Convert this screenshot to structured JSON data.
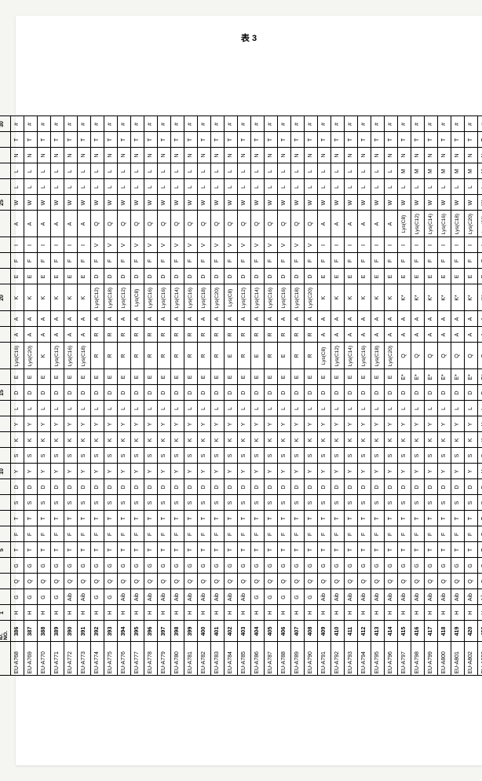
{
  "title": "表 3",
  "header_label_line1": "SEQ.",
  "header_label_line2": "ID.",
  "header_label_line3": "NO.",
  "pos_markers": {
    "1": "1",
    "5": "5",
    "10": "10",
    "15": "15",
    "20": "20",
    "25": "25",
    "30": "30"
  },
  "col_widths": [
    "c",
    "c",
    "c",
    "c",
    "c",
    "c",
    "c",
    "c",
    "c",
    "c",
    "c",
    "c",
    "c",
    "c",
    "c",
    "c",
    "cw",
    "c",
    "c",
    "cw",
    "c",
    "c",
    "c",
    "cw",
    "c",
    "c",
    "c",
    "c",
    "c",
    "c"
  ],
  "rows": [
    {
      "id": "EU-A768",
      "seq": "386",
      "cells": [
        "H",
        "G",
        "Q",
        "G",
        "T",
        "F",
        "T",
        "S",
        "D",
        "Y",
        "S",
        "K",
        "Y",
        "L",
        "D",
        "E",
        "Lys(C16)",
        "A",
        "A",
        "K",
        "E",
        "F",
        "I",
        "A",
        "W",
        "L",
        "L",
        "N",
        "T",
        "#"
      ]
    },
    {
      "id": "EU-A769",
      "seq": "387",
      "cells": [
        "H",
        "G",
        "Q",
        "G",
        "T",
        "F",
        "T",
        "S",
        "D",
        "Y",
        "S",
        "K",
        "Y",
        "L",
        "D",
        "E",
        "Lys(C20)",
        "A",
        "A",
        "K",
        "E",
        "F",
        "I",
        "A",
        "W",
        "L",
        "L",
        "N",
        "T",
        "#"
      ]
    },
    {
      "id": "EU-A770",
      "seq": "388",
      "cells": [
        "H",
        "G",
        "Q",
        "G",
        "T",
        "F",
        "T",
        "S",
        "D",
        "Y",
        "S",
        "K",
        "Y",
        "L",
        "D",
        "E",
        "K",
        "A",
        "A",
        "K",
        "E",
        "F",
        "I",
        "A",
        "W",
        "L",
        "L",
        "N",
        "T",
        "#"
      ]
    },
    {
      "id": "EU-A771",
      "seq": "389",
      "cells": [
        "H",
        "G",
        "Q",
        "G",
        "T",
        "F",
        "T",
        "S",
        "D",
        "Y",
        "S",
        "K",
        "Y",
        "L",
        "D",
        "E",
        "Lys(C12)",
        "A",
        "A",
        "K",
        "E",
        "F",
        "I",
        "A",
        "W",
        "L",
        "L",
        "N",
        "T",
        "#"
      ]
    },
    {
      "id": "EU-A772",
      "seq": "390",
      "cells": [
        "H",
        "Aib",
        "Q",
        "G",
        "T",
        "F",
        "T",
        "S",
        "D",
        "Y",
        "S",
        "K",
        "Y",
        "L",
        "D",
        "E",
        "Lys(C16)",
        "A",
        "A",
        "K",
        "E",
        "F",
        "I",
        "A",
        "W",
        "L",
        "L",
        "N",
        "T",
        "#"
      ]
    },
    {
      "id": "EU-A773",
      "seq": "391",
      "cells": [
        "H",
        "Aib",
        "Q",
        "G",
        "T",
        "F",
        "T",
        "S",
        "D",
        "Y",
        "S",
        "K",
        "Y",
        "L",
        "D",
        "E",
        "Lys(C18)",
        "A",
        "A",
        "K",
        "E",
        "F",
        "I",
        "A",
        "W",
        "L",
        "L",
        "N",
        "T",
        "#"
      ]
    },
    {
      "id": "EU-A774",
      "seq": "392",
      "cells": [
        "H",
        "G",
        "Q",
        "G",
        "T",
        "F",
        "T",
        "S",
        "D",
        "Y",
        "S",
        "K",
        "Y",
        "L",
        "D",
        "E",
        "R",
        "R",
        "A",
        "Lys(C12)",
        "D",
        "F",
        "V",
        "Q",
        "W",
        "L",
        "L",
        "N",
        "T",
        "#"
      ]
    },
    {
      "id": "EU-A775",
      "seq": "393",
      "cells": [
        "H",
        "G",
        "Q",
        "G",
        "T",
        "F",
        "T",
        "S",
        "D",
        "Y",
        "S",
        "K",
        "Y",
        "L",
        "D",
        "E",
        "R",
        "R",
        "A",
        "Lys(C18)",
        "D",
        "F",
        "V",
        "Q",
        "W",
        "L",
        "L",
        "N",
        "T",
        "#"
      ]
    },
    {
      "id": "EU-A776",
      "seq": "394",
      "cells": [
        "H",
        "Aib",
        "Q",
        "G",
        "T",
        "F",
        "T",
        "S",
        "D",
        "Y",
        "S",
        "K",
        "Y",
        "L",
        "D",
        "E",
        "R",
        "R",
        "A",
        "Lys(C12)",
        "D",
        "F",
        "V",
        "Q",
        "W",
        "L",
        "L",
        "N",
        "T",
        "#"
      ]
    },
    {
      "id": "EU-A777",
      "seq": "395",
      "cells": [
        "H",
        "Aib",
        "Q",
        "G",
        "T",
        "F",
        "T",
        "S",
        "D",
        "Y",
        "S",
        "K",
        "Y",
        "L",
        "D",
        "E",
        "R",
        "R",
        "A",
        "Lys(C8)",
        "D",
        "F",
        "V",
        "Q",
        "W",
        "L",
        "L",
        "N",
        "T",
        "#"
      ]
    },
    {
      "id": "EU-A778",
      "seq": "396",
      "cells": [
        "H",
        "Aib",
        "Q",
        "G",
        "T",
        "F",
        "T",
        "S",
        "D",
        "Y",
        "S",
        "K",
        "Y",
        "L",
        "D",
        "E",
        "R",
        "R",
        "A",
        "Lys(C16)",
        "D",
        "F",
        "V",
        "Q",
        "W",
        "L",
        "L",
        "N",
        "T",
        "#"
      ]
    },
    {
      "id": "EU-A779",
      "seq": "397",
      "cells": [
        "H",
        "Aib",
        "Q",
        "G",
        "T",
        "F",
        "T",
        "S",
        "D",
        "Y",
        "S",
        "K",
        "Y",
        "L",
        "D",
        "E",
        "R",
        "R",
        "A",
        "Lys(C16)",
        "D",
        "F",
        "V",
        "Q",
        "W",
        "L",
        "L",
        "N",
        "T",
        "#"
      ]
    },
    {
      "id": "EU-A780",
      "seq": "398",
      "cells": [
        "H",
        "Aib",
        "Q",
        "G",
        "T",
        "F",
        "T",
        "S",
        "D",
        "Y",
        "S",
        "K",
        "Y",
        "L",
        "D",
        "E",
        "R",
        "R",
        "A",
        "Lys(C14)",
        "D",
        "F",
        "V",
        "Q",
        "W",
        "L",
        "L",
        "N",
        "T",
        "#"
      ]
    },
    {
      "id": "EU-A781",
      "seq": "399",
      "cells": [
        "H",
        "Aib",
        "Q",
        "G",
        "T",
        "F",
        "T",
        "S",
        "D",
        "Y",
        "S",
        "K",
        "Y",
        "L",
        "D",
        "E",
        "R",
        "R",
        "A",
        "Lys(C16)",
        "D",
        "F",
        "V",
        "Q",
        "W",
        "L",
        "L",
        "N",
        "T",
        "#"
      ]
    },
    {
      "id": "EU-A782",
      "seq": "400",
      "cells": [
        "H",
        "Aib",
        "Q",
        "G",
        "T",
        "F",
        "T",
        "S",
        "D",
        "Y",
        "S",
        "K",
        "Y",
        "L",
        "D",
        "E",
        "R",
        "R",
        "A",
        "Lys(C18)",
        "D",
        "F",
        "V",
        "Q",
        "W",
        "L",
        "L",
        "N",
        "T",
        "#"
      ]
    },
    {
      "id": "EU-A783",
      "seq": "401",
      "cells": [
        "H",
        "Aib",
        "Q",
        "G",
        "T",
        "F",
        "T",
        "S",
        "D",
        "Y",
        "S",
        "K",
        "Y",
        "L",
        "D",
        "E",
        "R",
        "R",
        "A",
        "Lys(C20)",
        "D",
        "F",
        "V",
        "Q",
        "W",
        "L",
        "L",
        "N",
        "T",
        "#"
      ]
    },
    {
      "id": "EU-A784",
      "seq": "402",
      "cells": [
        "H",
        "Aib",
        "Q",
        "G",
        "T",
        "F",
        "T",
        "S",
        "D",
        "Y",
        "S",
        "K",
        "Y",
        "L",
        "D",
        "E",
        "E",
        "R",
        "A",
        "Lys(C8)",
        "D",
        "F",
        "V",
        "Q",
        "W",
        "L",
        "L",
        "N",
        "T",
        "#"
      ]
    },
    {
      "id": "EU-A785",
      "seq": "403",
      "cells": [
        "H",
        "Aib",
        "Q",
        "G",
        "T",
        "F",
        "T",
        "S",
        "D",
        "Y",
        "S",
        "K",
        "Y",
        "L",
        "D",
        "E",
        "R",
        "R",
        "A",
        "Lys(C12)",
        "D",
        "F",
        "V",
        "Q",
        "W",
        "L",
        "L",
        "N",
        "T",
        "#"
      ]
    },
    {
      "id": "EU-A786",
      "seq": "404",
      "cells": [
        "H",
        "G",
        "Q",
        "G",
        "T",
        "F",
        "T",
        "S",
        "D",
        "Y",
        "S",
        "K",
        "Y",
        "L",
        "D",
        "E",
        "E",
        "R",
        "A",
        "Lys(C14)",
        "D",
        "F",
        "V",
        "Q",
        "W",
        "L",
        "L",
        "N",
        "T",
        "#"
      ]
    },
    {
      "id": "EU-A787",
      "seq": "405",
      "cells": [
        "H",
        "G",
        "Q",
        "G",
        "T",
        "F",
        "T",
        "S",
        "D",
        "Y",
        "S",
        "K",
        "Y",
        "L",
        "D",
        "E",
        "R",
        "R",
        "A",
        "Lys(C16)",
        "D",
        "F",
        "V",
        "Q",
        "W",
        "L",
        "L",
        "N",
        "T",
        "#"
      ]
    },
    {
      "id": "EU-A788",
      "seq": "406",
      "cells": [
        "H",
        "G",
        "Q",
        "G",
        "T",
        "F",
        "T",
        "S",
        "D",
        "Y",
        "S",
        "K",
        "Y",
        "L",
        "D",
        "E",
        "E",
        "R",
        "A",
        "Lys(C16)",
        "D",
        "F",
        "V",
        "Q",
        "W",
        "L",
        "L",
        "N",
        "T",
        "#"
      ]
    },
    {
      "id": "EU-A789",
      "seq": "407",
      "cells": [
        "H",
        "G",
        "Q",
        "G",
        "T",
        "F",
        "T",
        "S",
        "D",
        "Y",
        "S",
        "K",
        "Y",
        "L",
        "D",
        "E",
        "R",
        "R",
        "A",
        "Lys(C18)",
        "D",
        "F",
        "V",
        "Q",
        "W",
        "L",
        "L",
        "N",
        "T",
        "#"
      ]
    },
    {
      "id": "EU-A790",
      "seq": "408",
      "cells": [
        "H",
        "G",
        "Q",
        "G",
        "T",
        "F",
        "T",
        "S",
        "D",
        "Y",
        "S",
        "K",
        "Y",
        "L",
        "D",
        "E",
        "R",
        "R",
        "A",
        "Lys(C20)",
        "D",
        "F",
        "V",
        "Q",
        "W",
        "L",
        "L",
        "N",
        "T",
        "#"
      ]
    },
    {
      "id": "EU-A791",
      "seq": "409",
      "cells": [
        "H",
        "Aib",
        "Q",
        "G",
        "T",
        "F",
        "T",
        "S",
        "D",
        "Y",
        "S",
        "K",
        "Y",
        "L",
        "D",
        "E",
        "Lys(C8)",
        "A",
        "A",
        "K",
        "E",
        "F",
        "I",
        "A",
        "W",
        "L",
        "L",
        "N",
        "T",
        "#"
      ]
    },
    {
      "id": "EU-A792",
      "seq": "410",
      "cells": [
        "H",
        "Aib",
        "Q",
        "G",
        "T",
        "F",
        "T",
        "S",
        "D",
        "Y",
        "S",
        "K",
        "Y",
        "L",
        "D",
        "E",
        "Lys(C12)",
        "A",
        "A",
        "K",
        "E",
        "F",
        "I",
        "A",
        "W",
        "L",
        "L",
        "N",
        "T",
        "#"
      ]
    },
    {
      "id": "EU-A793",
      "seq": "411",
      "cells": [
        "H",
        "Aib",
        "Q",
        "G",
        "T",
        "F",
        "T",
        "S",
        "D",
        "Y",
        "S",
        "K",
        "Y",
        "L",
        "D",
        "E",
        "Lys(C14)",
        "A",
        "A",
        "K",
        "E",
        "F",
        "I",
        "A",
        "W",
        "L",
        "L",
        "N",
        "T",
        "#"
      ]
    },
    {
      "id": "EU-A794",
      "seq": "412",
      "cells": [
        "H",
        "Aib",
        "Q",
        "G",
        "T",
        "F",
        "T",
        "S",
        "D",
        "Y",
        "S",
        "K",
        "Y",
        "L",
        "D",
        "E",
        "Lys(C16)",
        "A",
        "A",
        "K",
        "E",
        "F",
        "I",
        "A",
        "W",
        "L",
        "L",
        "N",
        "T",
        "#"
      ]
    },
    {
      "id": "EU-A795",
      "seq": "413",
      "cells": [
        "H",
        "Aib",
        "Q",
        "G",
        "T",
        "F",
        "T",
        "S",
        "D",
        "Y",
        "S",
        "K",
        "Y",
        "L",
        "D",
        "E",
        "Lys(C18)",
        "A",
        "A",
        "K",
        "E",
        "F",
        "I",
        "A",
        "W",
        "L",
        "L",
        "N",
        "T",
        "#"
      ]
    },
    {
      "id": "EU-A796",
      "seq": "414",
      "cells": [
        "H",
        "Aib",
        "Q",
        "G",
        "T",
        "F",
        "T",
        "S",
        "D",
        "Y",
        "S",
        "K",
        "Y",
        "L",
        "D",
        "E",
        "Lys(C20)",
        "A",
        "A",
        "K",
        "E",
        "F",
        "I",
        "A",
        "W",
        "L",
        "L",
        "N",
        "T",
        "#"
      ]
    },
    {
      "id": "EU-A797",
      "seq": "415",
      "cells": [
        "H",
        "Aib",
        "Q",
        "G",
        "T",
        "F",
        "T",
        "S",
        "D",
        "Y",
        "S",
        "K",
        "Y",
        "L",
        "D",
        "E*",
        "Q",
        "A",
        "A",
        "K*",
        "E",
        "F",
        "I",
        "Lys(C8)",
        "W",
        "L",
        "M",
        "N",
        "T",
        "#"
      ]
    },
    {
      "id": "EU-A798",
      "seq": "416",
      "cells": [
        "H",
        "Aib",
        "Q",
        "G",
        "T",
        "F",
        "T",
        "S",
        "D",
        "Y",
        "S",
        "K",
        "Y",
        "L",
        "D",
        "E*",
        "Q",
        "A",
        "A",
        "K*",
        "E",
        "F",
        "I",
        "Lys(C12)",
        "W",
        "L",
        "M",
        "N",
        "T",
        "#"
      ]
    },
    {
      "id": "EU-A799",
      "seq": "417",
      "cells": [
        "H",
        "Aib",
        "Q",
        "G",
        "T",
        "F",
        "T",
        "S",
        "D",
        "Y",
        "S",
        "K",
        "Y",
        "L",
        "D",
        "E*",
        "Q",
        "A",
        "A",
        "K*",
        "E",
        "F",
        "I",
        "Lys(C14)",
        "W",
        "L",
        "M",
        "N",
        "T",
        "#"
      ]
    },
    {
      "id": "EU-A800",
      "seq": "418",
      "cells": [
        "H",
        "Aib",
        "Q",
        "G",
        "T",
        "F",
        "T",
        "S",
        "D",
        "Y",
        "S",
        "K",
        "Y",
        "L",
        "D",
        "E*",
        "Q",
        "A",
        "A",
        "K*",
        "E",
        "F",
        "I",
        "Lys(C16)",
        "W",
        "L",
        "M",
        "N",
        "T",
        "#"
      ]
    },
    {
      "id": "EU-A801",
      "seq": "419",
      "cells": [
        "H",
        "Aib",
        "Q",
        "G",
        "T",
        "F",
        "T",
        "S",
        "D",
        "Y",
        "S",
        "K",
        "Y",
        "L",
        "D",
        "E*",
        "Q",
        "A",
        "A",
        "K*",
        "E",
        "F",
        "I",
        "Lys(C18)",
        "W",
        "L",
        "M",
        "N",
        "T",
        "#"
      ]
    },
    {
      "id": "EU-A802",
      "seq": "420",
      "cells": [
        "H",
        "Aib",
        "Q",
        "G",
        "T",
        "F",
        "T",
        "S",
        "D",
        "Y",
        "S",
        "K",
        "Y",
        "L",
        "D",
        "E*",
        "Q",
        "A",
        "A",
        "K*",
        "E",
        "F",
        "I",
        "Lys(C20)",
        "W",
        "L",
        "M",
        "N",
        "T",
        "#"
      ]
    },
    {
      "id": "EU-A803",
      "seq": "420",
      "cells": [
        "H",
        "Aib",
        "Q",
        "G",
        "T",
        "F",
        "T",
        "S",
        "D",
        "Y",
        "S",
        "K",
        "Y",
        "L",
        "D",
        "E*",
        "Q",
        "A",
        "A",
        "K*",
        "E",
        "F",
        "I",
        "Lys(C8)",
        "W",
        "L",
        "M",
        "N",
        "T",
        "#"
      ]
    }
  ]
}
